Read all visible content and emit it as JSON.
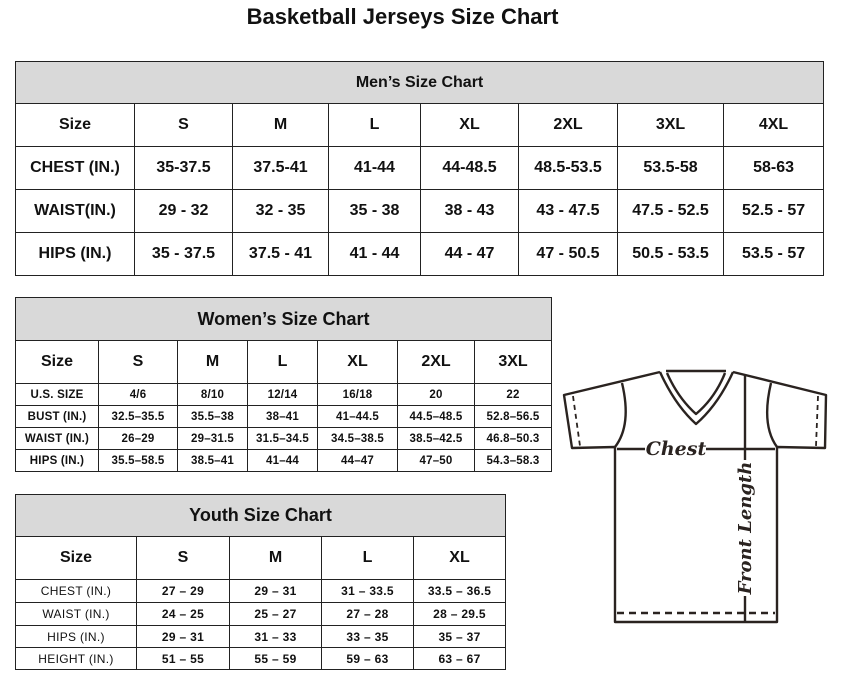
{
  "title": "Basketball Jerseys Size Chart",
  "men": {
    "title": "Men’s Size Chart",
    "header": [
      "Size",
      "S",
      "M",
      "L",
      "XL",
      "2XL",
      "3XL",
      "4XL"
    ],
    "rows": [
      [
        "CHEST (IN.)",
        "35-37.5",
        "37.5-41",
        "41-44",
        "44-48.5",
        "48.5-53.5",
        "53.5-58",
        "58-63"
      ],
      [
        "WAIST(IN.)",
        "29 - 32",
        "32 - 35",
        "35 - 38",
        "38 - 43",
        "43 - 47.5",
        "47.5 - 52.5",
        "52.5 - 57"
      ],
      [
        "HIPS (IN.)",
        "35 - 37.5",
        "37.5 - 41",
        "41 - 44",
        "44 - 47",
        "47 - 50.5",
        "50.5 - 53.5",
        "53.5 - 57"
      ]
    ]
  },
  "women": {
    "title": "Women’s Size Chart",
    "header": [
      "Size",
      "S",
      "M",
      "L",
      "XL",
      "2XL",
      "3XL"
    ],
    "rows": [
      [
        "U.S.  SIZE",
        "4/6",
        "8/10",
        "12/14",
        "16/18",
        "20",
        "22"
      ],
      [
        "BUST  (IN.)",
        "32.5–35.5",
        "35.5–38",
        "38–41",
        "41–44.5",
        "44.5–48.5",
        "52.8–56.5"
      ],
      [
        "WAIST  (IN.)",
        "26–29",
        "29–31.5",
        "31.5–34.5",
        "34.5–38.5",
        "38.5–42.5",
        "46.8–50.3"
      ],
      [
        "HIPS  (IN.)",
        "35.5–58.5",
        "38.5–41",
        "41–44",
        "44–47",
        "47–50",
        "54.3–58.3"
      ]
    ]
  },
  "youth": {
    "title": "Youth Size Chart",
    "header": [
      "Size",
      "S",
      "M",
      "L",
      "XL"
    ],
    "rows": [
      [
        "CHEST  (IN.)",
        "27  –  29",
        "29  –  31",
        "31  –  33.5",
        "33.5  –  36.5"
      ],
      [
        "WAIST  (IN.)",
        "24  –  25",
        "25  –  27",
        "27  –  28",
        "28  –  29.5"
      ],
      [
        "HIPS  (IN.)",
        "29  –  31",
        "31  –  33",
        "33  –  35",
        "35  –  37"
      ],
      [
        "HEIGHT  (IN.)",
        "51  –  55",
        "55  –  59",
        "59  –  63",
        "63  –  67"
      ]
    ]
  },
  "diagram": {
    "chest_label": "Chest",
    "length_label": "Front Length",
    "line_color": "#2a2320"
  },
  "colors": {
    "header_bg": "#d9d9d9",
    "border": "#222222"
  }
}
